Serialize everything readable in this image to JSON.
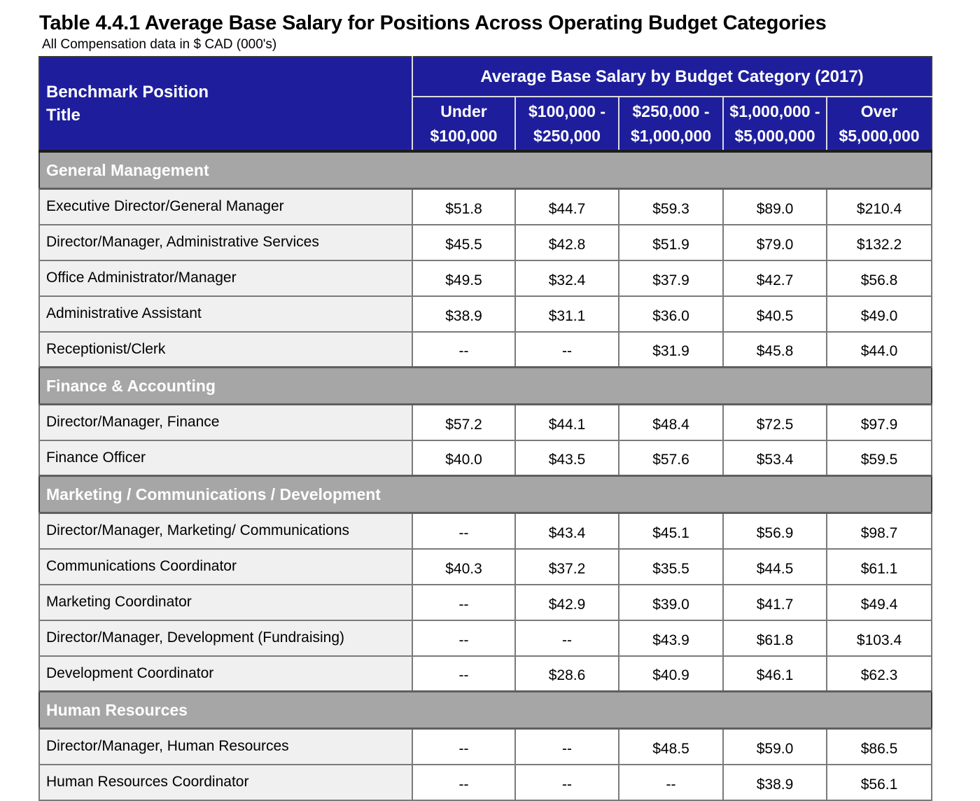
{
  "page": {
    "title": "Table 4.4.1 Average Base Salary for Positions Across Operating Budget Categories",
    "subtitle": "All Compensation data in $ CAD (000's)"
  },
  "colors": {
    "header_blue": "#1e1e9c",
    "section_gray": "#a6a6a6",
    "label_cell_gray": "#f0f0f0",
    "body_border": "#7a7a7a",
    "header_divider": "#dcdcdc",
    "header_text": "#ffffff"
  },
  "table": {
    "row_header": {
      "line1": "Benchmark Position",
      "line2": "Title"
    },
    "group_header": "Average Base Salary by Budget Category (2017)",
    "columns": [
      {
        "line1": "Under",
        "line2": "$100,000"
      },
      {
        "line1": "$100,000 -",
        "line2": "$250,000"
      },
      {
        "line1": "$250,000 -",
        "line2": "$1,000,000"
      },
      {
        "line1": "$1,000,000 -",
        "line2": "$5,000,000"
      },
      {
        "line1": "Over",
        "line2": "$5,000,000"
      }
    ],
    "no_data_marker": "--",
    "sections": [
      {
        "name": "General Management",
        "rows": [
          {
            "label": "Executive Director/General Manager",
            "values": [
              "$51.8",
              "$44.7",
              "$59.3",
              "$89.0",
              "$210.4"
            ]
          },
          {
            "label": "Director/Manager, Administrative Services",
            "values": [
              "$45.5",
              "$42.8",
              "$51.9",
              "$79.0",
              "$132.2"
            ]
          },
          {
            "label": "Office Administrator/Manager",
            "values": [
              "$49.5",
              "$32.4",
              "$37.9",
              "$42.7",
              "$56.8"
            ]
          },
          {
            "label": "Administrative Assistant",
            "values": [
              "$38.9",
              "$31.1",
              "$36.0",
              "$40.5",
              "$49.0"
            ]
          },
          {
            "label": "Receptionist/Clerk",
            "values": [
              "--",
              "--",
              "$31.9",
              "$45.8",
              "$44.0"
            ]
          }
        ]
      },
      {
        "name": "Finance & Accounting",
        "rows": [
          {
            "label": "Director/Manager, Finance",
            "values": [
              "$57.2",
              "$44.1",
              "$48.4",
              "$72.5",
              "$97.9"
            ]
          },
          {
            "label": "Finance Officer",
            "values": [
              "$40.0",
              "$43.5",
              "$57.6",
              "$53.4",
              "$59.5"
            ]
          }
        ]
      },
      {
        "name": "Marketing / Communications / Development",
        "rows": [
          {
            "label": "Director/Manager, Marketing/ Communications",
            "values": [
              "--",
              "$43.4",
              "$45.1",
              "$56.9",
              "$98.7"
            ]
          },
          {
            "label": "Communications Coordinator",
            "values": [
              "$40.3",
              "$37.2",
              "$35.5",
              "$44.5",
              "$61.1"
            ]
          },
          {
            "label": "Marketing Coordinator",
            "values": [
              "--",
              "$42.9",
              "$39.0",
              "$41.7",
              "$49.4"
            ]
          },
          {
            "label": "Director/Manager, Development (Fundraising)",
            "values": [
              "--",
              "--",
              "$43.9",
              "$61.8",
              "$103.4"
            ]
          },
          {
            "label": "Development Coordinator",
            "values": [
              "--",
              "$28.6",
              "$40.9",
              "$46.1",
              "$62.3"
            ]
          }
        ]
      },
      {
        "name": "Human Resources",
        "rows": [
          {
            "label": "Director/Manager, Human Resources",
            "values": [
              "--",
              "--",
              "$48.5",
              "$59.0",
              "$86.5"
            ]
          },
          {
            "label": "Human Resources Coordinator",
            "values": [
              "--",
              "--",
              "--",
              "$38.9",
              "$56.1"
            ]
          }
        ]
      }
    ]
  }
}
